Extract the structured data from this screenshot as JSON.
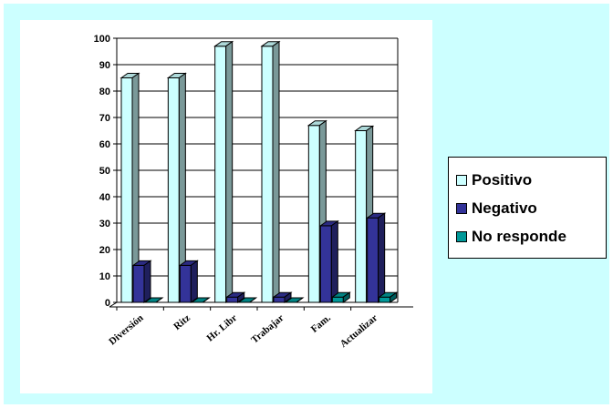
{
  "chart_data": {
    "type": "bar",
    "title": "",
    "xlabel": "",
    "ylabel": "",
    "ylim": [
      0,
      100
    ],
    "yticks": [
      0,
      10,
      20,
      30,
      40,
      50,
      60,
      70,
      80,
      90,
      100
    ],
    "categories": [
      "Diversión",
      "Ritz",
      "Hr. Libr",
      "Trabajar",
      "Fam.",
      "Actualizar"
    ],
    "series": [
      {
        "name": "Positivo",
        "color": "#ccffff",
        "values": [
          85,
          85,
          97,
          97,
          67,
          65
        ]
      },
      {
        "name": "Negativo",
        "color": "#333399",
        "values": [
          14,
          14,
          2,
          2,
          29,
          32
        ]
      },
      {
        "name": "No responde",
        "color": "#009999",
        "values": [
          0,
          0,
          0,
          0,
          2,
          2
        ]
      }
    ],
    "grid": true,
    "legend_position": "right",
    "style": "3d-column"
  }
}
